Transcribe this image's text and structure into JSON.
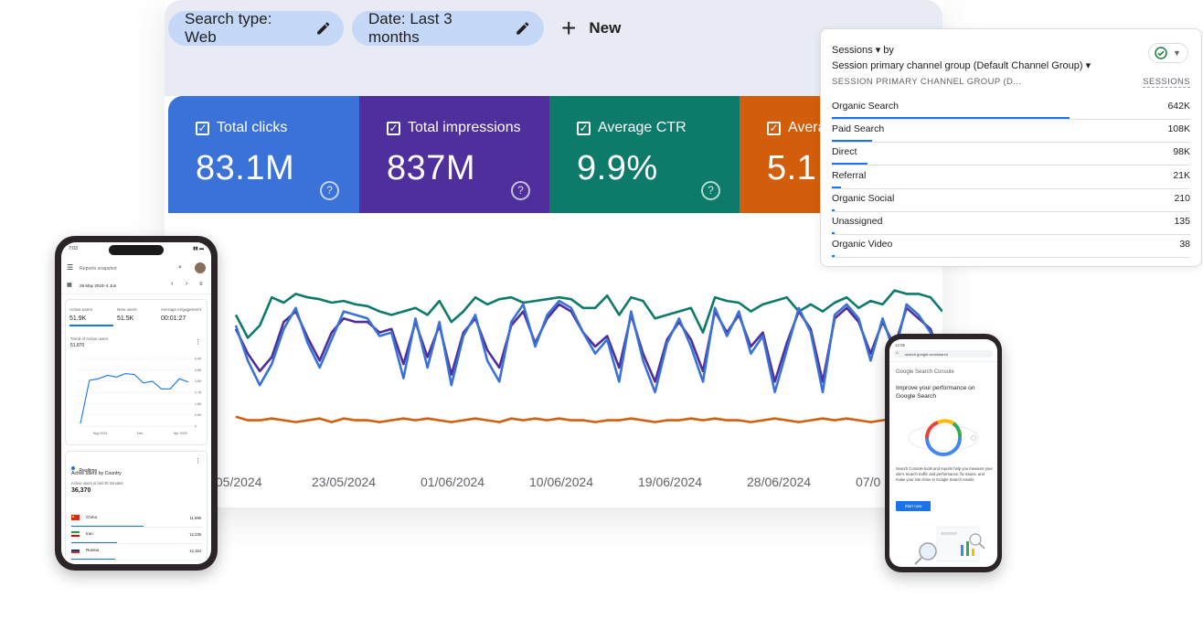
{
  "search_console": {
    "filters": [
      {
        "label": "Search type: Web"
      },
      {
        "label": "Date: Last 3 months"
      }
    ],
    "new_label": "New",
    "metrics": [
      {
        "label": "Total clicks",
        "value": "83.1M",
        "color": "#3a72d8"
      },
      {
        "label": "Total impressions",
        "value": "837M",
        "color": "#4f2f9b"
      },
      {
        "label": "Average CTR",
        "value": "9.9%",
        "color": "#0d7a6a"
      },
      {
        "label": "Avera",
        "value": "5.1",
        "color": "#d25e0b"
      }
    ],
    "chart_data": {
      "type": "line",
      "x_tick_labels": [
        "/05/2024",
        "23/05/2024",
        "01/06/2024",
        "10/06/2024",
        "19/06/2024",
        "28/06/2024",
        "07/0"
      ],
      "series": [
        {
          "color": "#0d7a6a",
          "values": [
            68,
            55,
            62,
            78,
            75,
            80,
            78,
            77,
            75,
            76,
            74,
            73,
            70,
            68,
            70,
            72,
            68,
            76,
            64,
            70,
            78,
            74,
            77,
            78,
            75,
            76,
            77,
            78,
            77,
            72,
            72,
            79,
            68,
            78,
            76,
            66,
            68,
            70,
            72,
            58,
            78,
            76,
            75,
            70,
            74,
            76,
            78,
            70,
            74,
            70,
            75,
            78,
            72,
            76,
            74,
            82,
            80,
            80,
            78,
            70
          ]
        },
        {
          "color": "#4f2f9b",
          "values": [
            60,
            46,
            36,
            44,
            64,
            70,
            55,
            42,
            58,
            66,
            64,
            64,
            58,
            60,
            40,
            64,
            44,
            62,
            34,
            58,
            66,
            48,
            38,
            62,
            70,
            52,
            66,
            74,
            70,
            58,
            50,
            56,
            38,
            68,
            46,
            30,
            54,
            64,
            54,
            36,
            70,
            58,
            68,
            50,
            58,
            30,
            52,
            70,
            60,
            30,
            66,
            72,
            64,
            46,
            64,
            50,
            72,
            66,
            60,
            40
          ]
        },
        {
          "color": "#3a72d8",
          "values": [
            62,
            42,
            28,
            40,
            60,
            72,
            52,
            38,
            54,
            70,
            68,
            66,
            56,
            58,
            32,
            66,
            38,
            64,
            28,
            56,
            68,
            42,
            30,
            64,
            74,
            50,
            68,
            76,
            72,
            58,
            46,
            54,
            30,
            70,
            42,
            24,
            52,
            66,
            50,
            30,
            72,
            56,
            70,
            46,
            56,
            24,
            48,
            72,
            58,
            24,
            68,
            74,
            66,
            42,
            66,
            46,
            74,
            68,
            58,
            32
          ]
        },
        {
          "color": "#d25e0b",
          "values": [
            10,
            8,
            8,
            9,
            8,
            7,
            8,
            9,
            7,
            9,
            8,
            8,
            7,
            8,
            9,
            8,
            9,
            8,
            7,
            8,
            9,
            8,
            7,
            9,
            8,
            9,
            8,
            9,
            8,
            8,
            7,
            8,
            8,
            9,
            8,
            7,
            8,
            8,
            9,
            8,
            9,
            8,
            8,
            7,
            8,
            9,
            8,
            7,
            8,
            9,
            8,
            9,
            8,
            7,
            8,
            9,
            8,
            9,
            10,
            9
          ]
        }
      ]
    }
  },
  "sessions_card": {
    "title_metric": "Sessions",
    "title_by": "by",
    "title_dimension": "Session primary channel group (Default Channel Group)",
    "col_dimension": "SESSION PRIMARY CHANNEL GROUP (D...",
    "col_metric": "SESSIONS",
    "rows": [
      {
        "name": "Organic Search",
        "value": "642K",
        "share": 1.0
      },
      {
        "name": "Paid Search",
        "value": "108K",
        "share": 0.17
      },
      {
        "name": "Direct",
        "value": "98K",
        "share": 0.15
      },
      {
        "name": "Referral",
        "value": "21K",
        "share": 0.04
      },
      {
        "name": "Organic Social",
        "value": "210",
        "share": 0.01
      },
      {
        "name": "Unassigned",
        "value": "135",
        "share": 0.01
      },
      {
        "name": "Organic Video",
        "value": "38",
        "share": 0.01
      }
    ]
  },
  "phone_analytics": {
    "time": "7:03",
    "header_title": "Reports snapshot",
    "date_range": "29 May 2024–4 Jun",
    "kpis": [
      {
        "label": "Active users",
        "value": "51.9K"
      },
      {
        "label": "New users",
        "value": "51.5K"
      },
      {
        "label": "Average engagement",
        "value": "00:01:27"
      }
    ],
    "trend_label": "Trend of Active users",
    "trend_value": "51,870",
    "trend_y_ticks": [
      "8.4K",
      "4.6K",
      "3.6K",
      "2.7K",
      "1.8K",
      "0.9K",
      "0"
    ],
    "trend_x_ticks": [
      "Aug 2024",
      "Dec",
      "Apr 2025"
    ],
    "trend_values": [
      0.3,
      5.4,
      5.6,
      6.0,
      5.8,
      6.2,
      6.1,
      5.1,
      5.3,
      4.4,
      4.4,
      5.6,
      5.2
    ],
    "realtime_label": "Realtime",
    "realtime_title": "Active users by Country",
    "realtime_sub": "Active users in last 30 minutes",
    "realtime_value": "36,370",
    "countries": [
      {
        "name": "China",
        "value": "11,696",
        "share": 0.55
      },
      {
        "name": "Iran",
        "value": "12,235",
        "share": 0.35
      },
      {
        "name": "Russia",
        "value": "12,154",
        "share": 0.33
      }
    ]
  },
  "phone_console": {
    "time": "12:05",
    "url": "search.google.com/search",
    "brand": "Google Search Console",
    "heading": "Improve your performance on Google Search",
    "body": "Search Console tools and reports help you measure your site's Search traffic and performance, fix issues, and make your site shine in Google Search results",
    "cta": "Start now"
  }
}
